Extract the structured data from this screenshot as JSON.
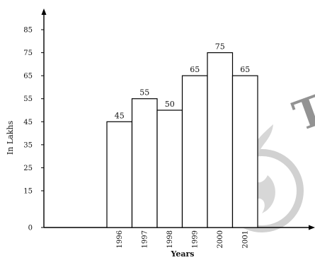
{
  "chart_data": {
    "type": "bar",
    "categories": [
      "1996",
      "1997",
      "1998",
      "1999",
      "2000",
      "2001"
    ],
    "values": [
      45,
      55,
      50,
      65,
      75,
      65
    ],
    "data_labels": [
      "45",
      "55",
      "50",
      "65",
      "75",
      "65"
    ],
    "y_ticks": [
      "0",
      "15",
      "25",
      "35",
      "45",
      "55",
      "65",
      "75",
      "85"
    ],
    "title": "",
    "xlabel": "Years",
    "ylabel": "In Lakhs",
    "ylim": [
      0,
      85
    ],
    "grid": false,
    "legend": "none",
    "bar_fill": "#ffffff",
    "bar_stroke": "#000000",
    "watermark": "T"
  }
}
